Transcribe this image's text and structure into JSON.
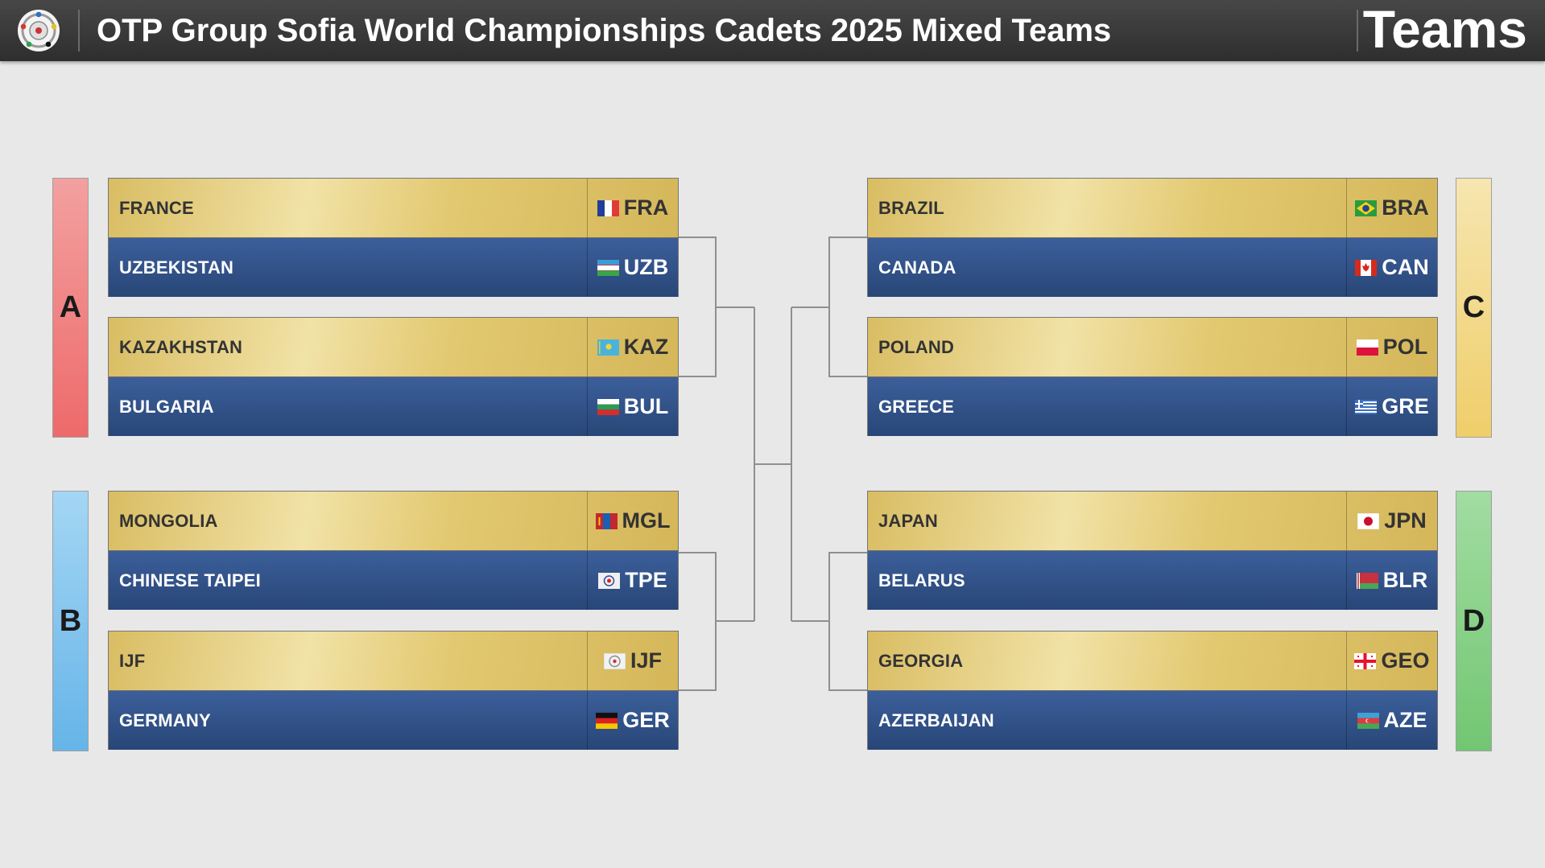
{
  "header": {
    "title": "OTP Group Sofia World Championships Cadets 2025 Mixed Teams",
    "tag": "Teams"
  },
  "pools": {
    "A": {
      "label": "A",
      "color": "#f07878"
    },
    "B": {
      "label": "B",
      "color": "#7cc0ec"
    },
    "C": {
      "label": "C",
      "color": "#f2d780"
    },
    "D": {
      "label": "D",
      "color": "#86cf86"
    }
  },
  "teams": {
    "fra": {
      "name": "FRANCE",
      "code": "FRA",
      "flag": "fra-flag-icon"
    },
    "uzb": {
      "name": "UZBEKISTAN",
      "code": "UZB",
      "flag": "uzb-flag-icon"
    },
    "kaz": {
      "name": "KAZAKHSTAN",
      "code": "KAZ",
      "flag": "kaz-flag-icon"
    },
    "bul": {
      "name": "BULGARIA",
      "code": "BUL",
      "flag": "bul-flag-icon"
    },
    "mgl": {
      "name": "MONGOLIA",
      "code": "MGL",
      "flag": "mgl-flag-icon"
    },
    "tpe": {
      "name": "CHINESE TAIPEI",
      "code": "TPE",
      "flag": "tpe-flag-icon"
    },
    "ijf": {
      "name": "IJF",
      "code": "IJF",
      "flag": "ijf-flag-icon"
    },
    "ger": {
      "name": "GERMANY",
      "code": "GER",
      "flag": "ger-flag-icon"
    },
    "bra": {
      "name": "BRAZIL",
      "code": "BRA",
      "flag": "bra-flag-icon"
    },
    "can": {
      "name": "CANADA",
      "code": "CAN",
      "flag": "can-flag-icon"
    },
    "pol": {
      "name": "POLAND",
      "code": "POL",
      "flag": "pol-flag-icon"
    },
    "gre": {
      "name": "GREECE",
      "code": "GRE",
      "flag": "gre-flag-icon"
    },
    "jpn": {
      "name": "JAPAN",
      "code": "JPN",
      "flag": "jpn-flag-icon"
    },
    "blr": {
      "name": "BELARUS",
      "code": "BLR",
      "flag": "blr-flag-icon"
    },
    "geo": {
      "name": "GEORGIA",
      "code": "GEO",
      "flag": "geo-flag-icon"
    },
    "aze": {
      "name": "AZERBAIJAN",
      "code": "AZE",
      "flag": "aze-flag-icon"
    }
  }
}
